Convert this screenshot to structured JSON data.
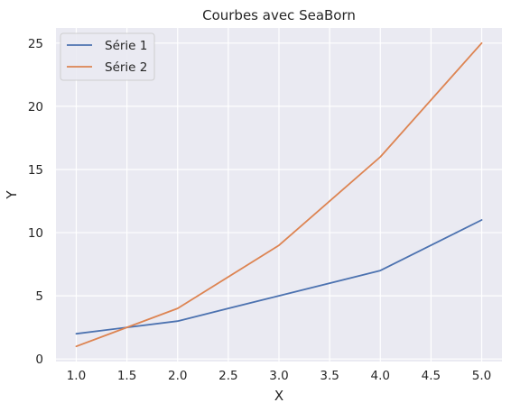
{
  "chart_data": {
    "type": "line",
    "title": "Courbes avec SeaBorn",
    "xlabel": "X",
    "ylabel": "Y",
    "xlim": [
      0.8,
      5.2
    ],
    "ylim": [
      -0.2,
      26.2
    ],
    "xticks": [
      "1.0",
      "1.5",
      "2.0",
      "2.5",
      "3.0",
      "3.5",
      "4.0",
      "4.5",
      "5.0"
    ],
    "yticks": [
      "0",
      "5",
      "10",
      "15",
      "20",
      "25"
    ],
    "grid": true,
    "legend_position": "top-left",
    "background": "#eaeaf2",
    "series": [
      {
        "name": "Série 1",
        "color": "#4c72b0",
        "x": [
          1,
          2,
          3,
          4,
          5
        ],
        "y": [
          2,
          3,
          5,
          7,
          11
        ]
      },
      {
        "name": "Série 2",
        "color": "#dd8452",
        "x": [
          1,
          2,
          3,
          4,
          5
        ],
        "y": [
          1,
          4,
          9,
          16,
          25
        ]
      }
    ]
  }
}
